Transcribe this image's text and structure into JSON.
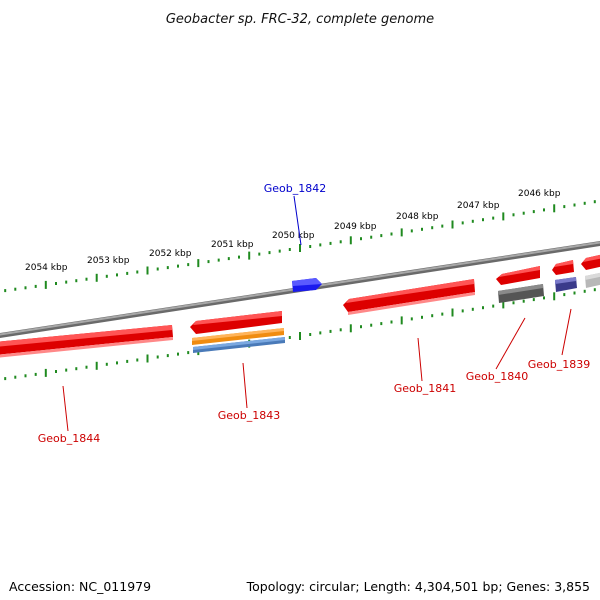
{
  "title": "Geobacter sp. FRC-32, complete genome",
  "colors": {
    "background": "#ffffff",
    "backbone": "#8a8a8a",
    "tick": "#1f8a1f",
    "gene_red": "#ee1111",
    "gene_blue": "#1a1aee",
    "gene_orange": "#f08c10",
    "gene_steelblue": "#4a7ab8",
    "gene_gray": "#666666",
    "gene_lightgray": "#b8b8b8",
    "gene_purple": "#3a3a8a",
    "label_red": "#cc0000",
    "label_blue": "#0000cc"
  },
  "ruler": {
    "unit": "kbp",
    "labels": [
      "2054 kbp",
      "2053 kbp",
      "2052 kbp",
      "2051 kbp",
      "2050 kbp",
      "2049 kbp",
      "2048 kbp",
      "2047 kbp",
      "2046 kbp"
    ]
  },
  "genes": [
    {
      "name": "Geob_1842",
      "strand": "+",
      "color": "gene_blue",
      "label_color": "label_blue"
    },
    {
      "name": "Geob_1844",
      "strand": "-",
      "color": "gene_red",
      "label_color": "label_red"
    },
    {
      "name": "Geob_1843",
      "strand": "-",
      "color": "gene_red",
      "label_color": "label_red"
    },
    {
      "name": "Geob_1841",
      "strand": "-",
      "color": "gene_red",
      "label_color": "label_red"
    },
    {
      "name": "Geob_1840",
      "strand": "-",
      "color": "gene_red",
      "label_color": "label_red"
    },
    {
      "name": "Geob_1839",
      "strand": "-",
      "color": "gene_red",
      "label_color": "label_red"
    }
  ],
  "footer": {
    "accession": "Accession: NC_011979",
    "summary": "Topology: circular; Length: 4,304,501 bp; Genes: 3,855"
  }
}
